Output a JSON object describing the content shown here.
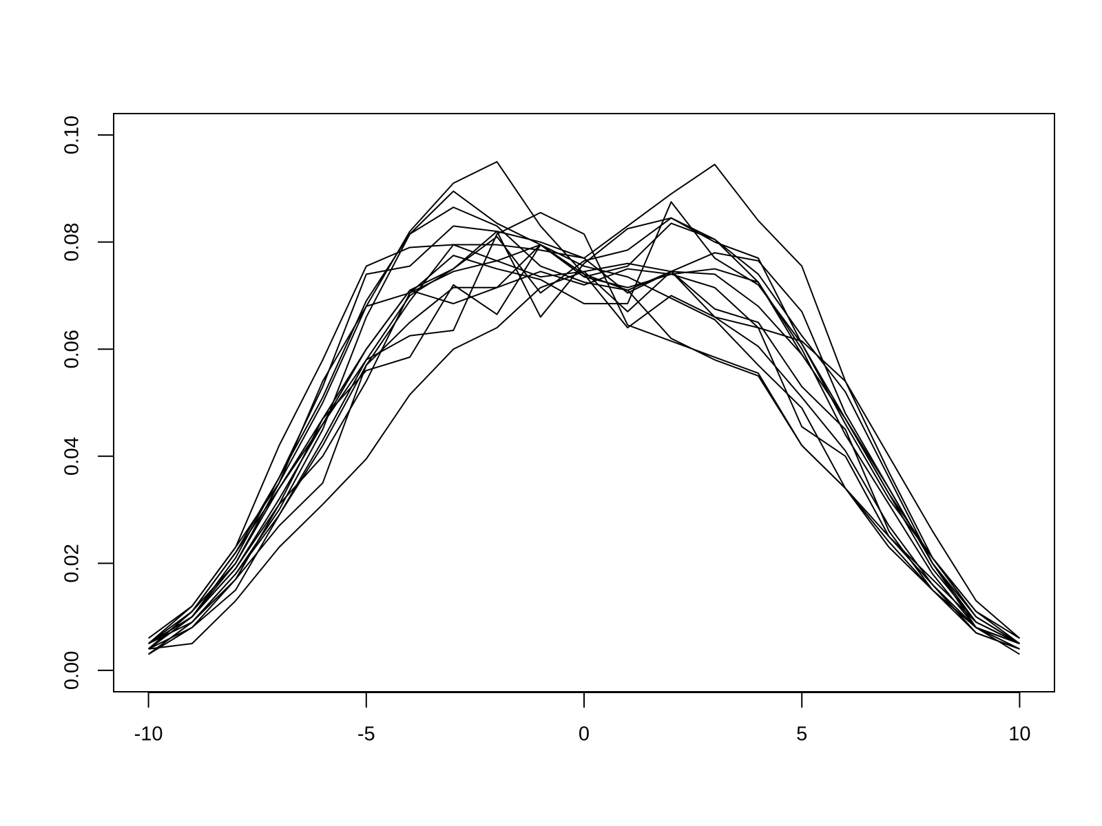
{
  "chart_data": {
    "type": "line",
    "x": [
      -10,
      -9,
      -8,
      -7,
      -6,
      -5,
      -4,
      -3,
      -2,
      -1,
      0,
      1,
      2,
      3,
      4,
      5,
      6,
      7,
      8,
      9,
      10
    ],
    "xlim": [
      -10.8,
      10.8
    ],
    "xticks": [
      -10,
      -5,
      0,
      5,
      10
    ],
    "ylim": [
      -0.004,
      0.104
    ],
    "yticks": [
      {
        "value": 0,
        "label": "0.00"
      },
      {
        "value": 0.02,
        "label": "0.02"
      },
      {
        "value": 0.04,
        "label": "0.04"
      },
      {
        "value": 0.06,
        "label": "0.06"
      },
      {
        "value": 0.08,
        "label": "0.08"
      },
      {
        "value": 0.1,
        "label": "0.10"
      }
    ],
    "grid": false,
    "series": [
      {
        "color": "#000000",
        "values": [
          0.004,
          0.01,
          0.02,
          0.035,
          0.05,
          0.068,
          0.082,
          0.091,
          0.095,
          0.083,
          0.074,
          0.071,
          0.062,
          0.058,
          0.055,
          0.042,
          0.034,
          0.024,
          0.015,
          0.008,
          0.005
        ]
      },
      {
        "color": "#000000",
        "values": [
          0.005,
          0.011,
          0.022,
          0.034,
          0.046,
          0.058,
          0.07,
          0.075,
          0.082,
          0.08,
          0.077,
          0.083,
          0.089,
          0.0945,
          0.084,
          0.0755,
          0.054,
          0.04,
          0.026,
          0.013,
          0.006
        ]
      },
      {
        "color": "#000000",
        "values": [
          0.004,
          0.005,
          0.013,
          0.023,
          0.031,
          0.0395,
          0.0515,
          0.06,
          0.064,
          0.0715,
          0.0745,
          0.076,
          0.0745,
          0.066,
          0.064,
          0.0615,
          0.054,
          0.037,
          0.021,
          0.011,
          0.005
        ]
      },
      {
        "color": "#000000",
        "values": [
          0.006,
          0.012,
          0.023,
          0.042,
          0.058,
          0.0755,
          0.079,
          0.0795,
          0.0795,
          0.0785,
          0.077,
          0.0705,
          0.0745,
          0.074,
          0.068,
          0.059,
          0.047,
          0.034,
          0.02,
          0.008,
          0.003
        ]
      },
      {
        "color": "#000000",
        "values": [
          0.005,
          0.01,
          0.021,
          0.036,
          0.053,
          0.074,
          0.0755,
          0.083,
          0.082,
          0.066,
          0.076,
          0.0825,
          0.0845,
          0.0805,
          0.0725,
          0.06,
          0.044,
          0.031,
          0.018,
          0.008,
          0.004
        ]
      },
      {
        "color": "#000000",
        "values": [
          0.003,
          0.009,
          0.018,
          0.03,
          0.045,
          0.066,
          0.0815,
          0.0895,
          0.0835,
          0.0795,
          0.074,
          0.064,
          0.07,
          0.066,
          0.0605,
          0.051,
          0.041,
          0.027,
          0.016,
          0.007,
          0.004
        ]
      },
      {
        "color": "#000000",
        "values": [
          0.004,
          0.011,
          0.02,
          0.034,
          0.047,
          0.06,
          0.071,
          0.075,
          0.081,
          0.0705,
          0.0765,
          0.0785,
          0.0845,
          0.08,
          0.077,
          0.061,
          0.046,
          0.032,
          0.021,
          0.01,
          0.005
        ]
      },
      {
        "color": "#000000",
        "values": [
          0.005,
          0.009,
          0.017,
          0.027,
          0.035,
          0.057,
          0.065,
          0.0715,
          0.0715,
          0.0795,
          0.0735,
          0.0715,
          0.074,
          0.0715,
          0.064,
          0.0455,
          0.04,
          0.025,
          0.016,
          0.008,
          0.005
        ]
      },
      {
        "color": "#000000",
        "values": [
          0.004,
          0.008,
          0.015,
          0.029,
          0.043,
          0.058,
          0.0625,
          0.0635,
          0.0815,
          0.0855,
          0.0815,
          0.0645,
          0.0615,
          0.0585,
          0.0555,
          0.042,
          0.034,
          0.023,
          0.015,
          0.008,
          0.005
        ]
      },
      {
        "color": "#000000",
        "values": [
          0.005,
          0.01,
          0.019,
          0.031,
          0.047,
          0.056,
          0.0585,
          0.072,
          0.0665,
          0.0795,
          0.0755,
          0.0735,
          0.0695,
          0.0655,
          0.057,
          0.049,
          0.034,
          0.025,
          0.017,
          0.009,
          0.005
        ]
      },
      {
        "color": "#000000",
        "values": [
          0.004,
          0.011,
          0.022,
          0.036,
          0.051,
          0.069,
          0.0815,
          0.0865,
          0.083,
          0.0755,
          0.0725,
          0.071,
          0.0745,
          0.0675,
          0.065,
          0.053,
          0.045,
          0.026,
          0.015,
          0.007,
          0.004
        ]
      },
      {
        "color": "#000000",
        "values": [
          0.003,
          0.008,
          0.017,
          0.031,
          0.04,
          0.054,
          0.0705,
          0.0745,
          0.0765,
          0.0795,
          0.0735,
          0.0755,
          0.0835,
          0.0805,
          0.074,
          0.0625,
          0.052,
          0.036,
          0.02,
          0.01,
          0.005
        ]
      },
      {
        "color": "#000000",
        "values": [
          0.005,
          0.012,
          0.023,
          0.035,
          0.054,
          0.068,
          0.0705,
          0.0775,
          0.075,
          0.073,
          0.0685,
          0.0685,
          0.0875,
          0.077,
          0.072,
          0.061,
          0.047,
          0.033,
          0.019,
          0.009,
          0.005
        ]
      },
      {
        "color": "#000000",
        "values": [
          0.004,
          0.01,
          0.019,
          0.032,
          0.046,
          0.06,
          0.071,
          0.0685,
          0.0715,
          0.0745,
          0.072,
          0.075,
          0.074,
          0.075,
          0.0725,
          0.059,
          0.047,
          0.033,
          0.021,
          0.011,
          0.006
        ]
      },
      {
        "color": "#000000",
        "values": [
          0.003,
          0.009,
          0.018,
          0.029,
          0.042,
          0.057,
          0.069,
          0.0795,
          0.0765,
          0.0735,
          0.0745,
          0.067,
          0.0745,
          0.078,
          0.0765,
          0.067,
          0.048,
          0.034,
          0.02,
          0.009,
          0.005
        ]
      }
    ]
  }
}
